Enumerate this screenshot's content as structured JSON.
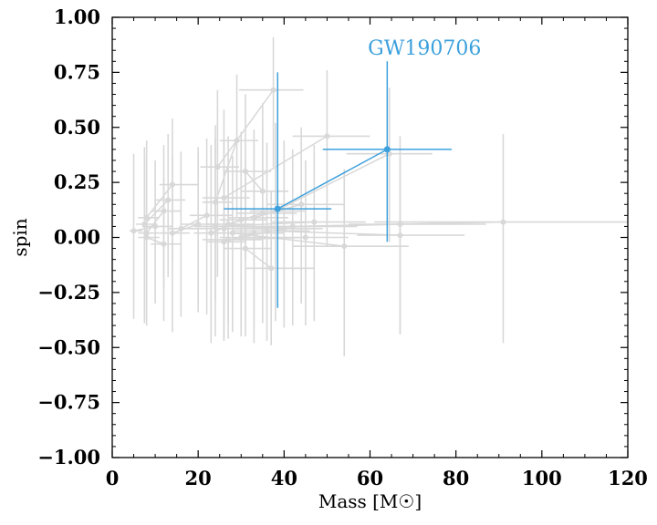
{
  "chart_data": {
    "type": "scatter",
    "xlabel": "Mass [M☉]",
    "ylabel": "spin",
    "xlim": [
      0,
      120
    ],
    "ylim": [
      -1.0,
      1.0
    ],
    "x_ticks": [
      0,
      20,
      40,
      60,
      80,
      100,
      120
    ],
    "x_tick_labels": [
      "0",
      "20",
      "40",
      "60",
      "80",
      "100",
      "120"
    ],
    "y_ticks": [
      -1.0,
      -0.75,
      -0.5,
      -0.25,
      0.0,
      0.25,
      0.5,
      0.75,
      1.0
    ],
    "y_tick_labels": [
      "−1.00",
      "−0.75",
      "−0.50",
      "−0.25",
      "0.00",
      "0.25",
      "0.50",
      "0.75",
      "1.00"
    ],
    "grid": false,
    "annotation": {
      "text": "GW190706",
      "x": 59.5,
      "y": 0.83
    },
    "colors": {
      "background_series": "#d8d8d8",
      "highlight": "#3ca0dc",
      "axes": "#000000"
    },
    "highlight": {
      "points": [
        {
          "x": 38.5,
          "y": 0.13,
          "xerr": [
            12.5,
            12.5
          ],
          "yerr": [
            0.45,
            0.62
          ]
        },
        {
          "x": 64.0,
          "y": 0.4,
          "xerr": [
            15.0,
            15.0
          ],
          "yerr": [
            0.42,
            0.4
          ]
        }
      ]
    },
    "background": {
      "pairs": [
        [
          {
            "x": 37.5,
            "y": 0.67,
            "xerr": [
              8,
              7
            ],
            "yerr": [
              0.35,
              0.24
            ]
          },
          {
            "x": 24.5,
            "y": 0.32,
            "xerr": [
              4,
              5
            ],
            "yerr": [
              0.5,
              0.35
            ]
          }
        ],
        [
          {
            "x": 50.0,
            "y": 0.46,
            "xerr": [
              8,
              10
            ],
            "yerr": [
              0.5,
              0.3
            ]
          },
          {
            "x": 26.0,
            "y": 0.18,
            "xerr": [
              5,
              6
            ],
            "yerr": [
              0.5,
              0.4
            ]
          }
        ],
        [
          {
            "x": 64.5,
            "y": 0.38,
            "xerr": [
              10,
              10
            ],
            "yerr": [
              0.4,
              0.3
            ]
          },
          {
            "x": 38.0,
            "y": 0.12,
            "xerr": [
              6,
              7
            ],
            "yerr": [
              0.5,
              0.4
            ]
          }
        ],
        [
          {
            "x": 91.0,
            "y": 0.07,
            "xerr": [
              30,
              30
            ],
            "yerr": [
              0.55,
              0.4
            ]
          },
          {
            "x": 42.0,
            "y": 0.05,
            "xerr": [
              10,
              15
            ],
            "yerr": [
              0.45,
              0.35
            ]
          }
        ],
        [
          {
            "x": 67.0,
            "y": 0.06,
            "xerr": [
              12,
              20
            ],
            "yerr": [
              0.5,
              0.4
            ]
          },
          {
            "x": 26.0,
            "y": 0.04,
            "xerr": [
              8,
              10
            ],
            "yerr": [
              0.5,
              0.4
            ]
          }
        ],
        [
          {
            "x": 67.0,
            "y": 0.01,
            "xerr": [
              10,
              15
            ],
            "yerr": [
              0.45,
              0.35
            ]
          },
          {
            "x": 36.0,
            "y": 0.03,
            "xerr": [
              8,
              10
            ],
            "yerr": [
              0.5,
              0.4
            ]
          }
        ],
        [
          {
            "x": 54.0,
            "y": -0.04,
            "xerr": [
              12,
              15
            ],
            "yerr": [
              0.5,
              0.35
            ]
          },
          {
            "x": 28.0,
            "y": 0.02,
            "xerr": [
              6,
              8
            ],
            "yerr": [
              0.45,
              0.35
            ]
          }
        ],
        [
          {
            "x": 47.0,
            "y": 0.07,
            "xerr": [
              10,
              12
            ],
            "yerr": [
              0.45,
              0.35
            ]
          },
          {
            "x": 24.0,
            "y": 0.05,
            "xerr": [
              5,
              8
            ],
            "yerr": [
              0.5,
              0.4
            ]
          }
        ],
        [
          {
            "x": 45.0,
            "y": 0.0,
            "xerr": [
              8,
              10
            ],
            "yerr": [
              0.4,
              0.35
            ]
          },
          {
            "x": 27.0,
            "y": -0.01,
            "xerr": [
              6,
              8
            ],
            "yerr": [
              0.45,
              0.35
            ]
          }
        ],
        [
          {
            "x": 37.0,
            "y": -0.14,
            "xerr": [
              6,
              10
            ],
            "yerr": [
              0.35,
              0.35
            ]
          },
          {
            "x": 31.0,
            "y": -0.05,
            "xerr": [
              5,
              6
            ],
            "yerr": [
              0.4,
              0.4
            ]
          }
        ],
        [
          {
            "x": 29.0,
            "y": 0.44,
            "xerr": [
              4,
              5
            ],
            "yerr": [
              0.35,
              0.3
            ]
          },
          {
            "x": 24.0,
            "y": 0.16,
            "xerr": [
              3,
              4
            ],
            "yerr": [
              0.45,
              0.35
            ]
          }
        ],
        [
          {
            "x": 31.0,
            "y": 0.3,
            "xerr": [
              5,
              6
            ],
            "yerr": [
              0.4,
              0.35
            ]
          },
          {
            "x": 35.0,
            "y": 0.21,
            "xerr": [
              5,
              6
            ],
            "yerr": [
              0.45,
              0.4
            ]
          }
        ],
        [
          {
            "x": 14.0,
            "y": 0.24,
            "xerr": [
              3,
              6
            ],
            "yerr": [
              0.35,
              0.3
            ]
          },
          {
            "x": 8.0,
            "y": 0.09,
            "xerr": [
              2,
              3
            ],
            "yerr": [
              0.4,
              0.35
            ]
          }
        ],
        [
          {
            "x": 13.0,
            "y": 0.17,
            "xerr": [
              3,
              4
            ],
            "yerr": [
              0.35,
              0.3
            ]
          },
          {
            "x": 7.5,
            "y": 0.06,
            "xerr": [
              2,
              3
            ],
            "yerr": [
              0.45,
              0.35
            ]
          }
        ],
        [
          {
            "x": 12.0,
            "y": 0.12,
            "xerr": [
              3,
              4
            ],
            "yerr": [
              0.35,
              0.3
            ]
          },
          {
            "x": 8.0,
            "y": 0.02,
            "xerr": [
              2,
              3
            ],
            "yerr": [
              0.4,
              0.35
            ]
          }
        ],
        [
          {
            "x": 10.0,
            "y": 0.05,
            "xerr": [
              3,
              4
            ],
            "yerr": [
              0.35,
              0.3
            ]
          },
          {
            "x": 5.0,
            "y": 0.03,
            "xerr": [
              1,
              2
            ],
            "yerr": [
              0.4,
              0.35
            ]
          }
        ],
        [
          {
            "x": 12.0,
            "y": -0.03,
            "xerr": [
              3,
              4
            ],
            "yerr": [
              0.35,
              0.3
            ]
          },
          {
            "x": 8.0,
            "y": 0.0,
            "xerr": [
              2,
              3
            ],
            "yerr": [
              0.4,
              0.35
            ]
          }
        ],
        [
          {
            "x": 20.0,
            "y": 0.06,
            "xerr": [
              4,
              5
            ],
            "yerr": [
              0.4,
              0.35
            ]
          },
          {
            "x": 14.0,
            "y": 0.02,
            "xerr": [
              3,
              4
            ],
            "yerr": [
              0.45,
              0.35
            ]
          }
        ],
        [
          {
            "x": 22.0,
            "y": 0.1,
            "xerr": [
              4,
              6
            ],
            "yerr": [
              0.45,
              0.35
            ]
          },
          {
            "x": 16.0,
            "y": 0.04,
            "xerr": [
              3,
              4
            ],
            "yerr": [
              0.4,
              0.35
            ]
          }
        ],
        [
          {
            "x": 30.0,
            "y": 0.08,
            "xerr": [
              5,
              6
            ],
            "yerr": [
              0.5,
              0.4
            ]
          },
          {
            "x": 23.0,
            "y": 0.02,
            "xerr": [
              4,
              5
            ],
            "yerr": [
              0.5,
              0.4
            ]
          }
        ],
        [
          {
            "x": 33.0,
            "y": 0.02,
            "xerr": [
              5,
              7
            ],
            "yerr": [
              0.5,
              0.4
            ]
          },
          {
            "x": 26.0,
            "y": -0.02,
            "xerr": [
              4,
              5
            ],
            "yerr": [
              0.45,
              0.35
            ]
          }
        ],
        [
          {
            "x": 40.0,
            "y": 0.04,
            "xerr": [
              7,
              9
            ],
            "yerr": [
              0.45,
              0.4
            ]
          },
          {
            "x": 30.0,
            "y": 0.0,
            "xerr": [
              5,
              6
            ],
            "yerr": [
              0.45,
              0.35
            ]
          }
        ],
        [
          {
            "x": 35.0,
            "y": 0.11,
            "xerr": [
              6,
              8
            ],
            "yerr": [
              0.5,
              0.4
            ]
          },
          {
            "x": 27.0,
            "y": 0.06,
            "xerr": [
              5,
              6
            ],
            "yerr": [
              0.45,
              0.4
            ]
          }
        ],
        [
          {
            "x": 44.0,
            "y": 0.15,
            "xerr": [
              8,
              10
            ],
            "yerr": [
              0.45,
              0.35
            ]
          },
          {
            "x": 33.0,
            "y": 0.09,
            "xerr": [
              6,
              8
            ],
            "yerr": [
              0.5,
              0.4
            ]
          }
        ]
      ]
    }
  }
}
